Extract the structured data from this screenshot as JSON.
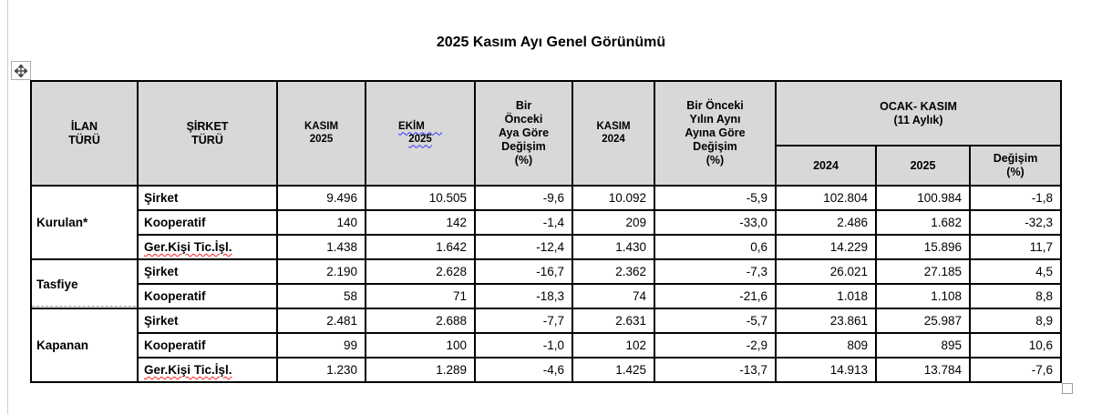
{
  "title": "2025 Kasım Ayı Genel Görünümü",
  "colors": {
    "header_bg": "#d8d8d8",
    "table_border": "#000000",
    "spellcheck_blue": "#3535ff",
    "spellcheck_red": "#ff2020",
    "handle_border": "#9e9e9e"
  },
  "icons": {
    "move_handle": "table-move-handle-icon",
    "resize_handle": "table-resize-handle"
  },
  "table": {
    "header": {
      "ilan_turu": "İLAN\nTÜRÜ",
      "sirket_turu": "ŞİRKET\nTÜRÜ",
      "kasim_2025": "KASIM\n2025",
      "ekim_line1": "EKİM",
      "ekim_line2": "2025",
      "prev_month_change": "Bir\nÖnceki\nAya Göre\nDeğişim\n(%)",
      "kasim_2024": "KASIM\n2024",
      "prev_year_change": "Bir Önceki\nYılın Aynı\nAyına Göre\nDeğişim\n(%)",
      "ocak_kasim": "OCAK- KASIM\n(11 Aylık)",
      "sub_2024": "2024",
      "sub_2025": "2025",
      "sub_degisim": "Değişim\n(%)"
    },
    "groups": [
      {
        "label": "Kurulan*",
        "rows": [
          {
            "type": "Şirket",
            "spellcheck": false,
            "values": [
              "9.496",
              "10.505",
              "-9,6",
              "10.092",
              "-5,9",
              "102.804",
              "100.984",
              "-1,8"
            ]
          },
          {
            "type": "Kooperatif",
            "spellcheck": false,
            "values": [
              "140",
              "142",
              "-1,4",
              "209",
              "-33,0",
              "2.486",
              "1.682",
              "-32,3"
            ]
          },
          {
            "type": "Ger.Kişi Tic.İşl.",
            "spellcheck": true,
            "values": [
              "1.438",
              "1.642",
              "-12,4",
              "1.430",
              "0,6",
              "14.229",
              "15.896",
              "11,7"
            ]
          }
        ]
      },
      {
        "label": "Tasfiye",
        "rows": [
          {
            "type": "Şirket",
            "spellcheck": false,
            "values": [
              "2.190",
              "2.628",
              "-16,7",
              "2.362",
              "-7,3",
              "26.021",
              "27.185",
              "4,5"
            ]
          },
          {
            "type": "Kooperatif",
            "spellcheck": false,
            "values": [
              "58",
              "71",
              "-18,3",
              "74",
              "-21,6",
              "1.018",
              "1.108",
              "8,8"
            ]
          }
        ]
      },
      {
        "label": "Kapanan",
        "rows": [
          {
            "type": "Şirket",
            "spellcheck": false,
            "values": [
              "2.481",
              "2.688",
              "-7,7",
              "2.631",
              "-5,7",
              "23.861",
              "25.987",
              "8,9"
            ]
          },
          {
            "type": "Kooperatif",
            "spellcheck": false,
            "values": [
              "99",
              "100",
              "-1,0",
              "102",
              "-2,9",
              "809",
              "895",
              "10,6"
            ]
          },
          {
            "type": "Ger.Kişi Tic.İşl.",
            "spellcheck": true,
            "values": [
              "1.230",
              "1.289",
              "-4,6",
              "1.425",
              "-13,7",
              "14.913",
              "13.784",
              "-7,6"
            ]
          }
        ]
      }
    ]
  }
}
